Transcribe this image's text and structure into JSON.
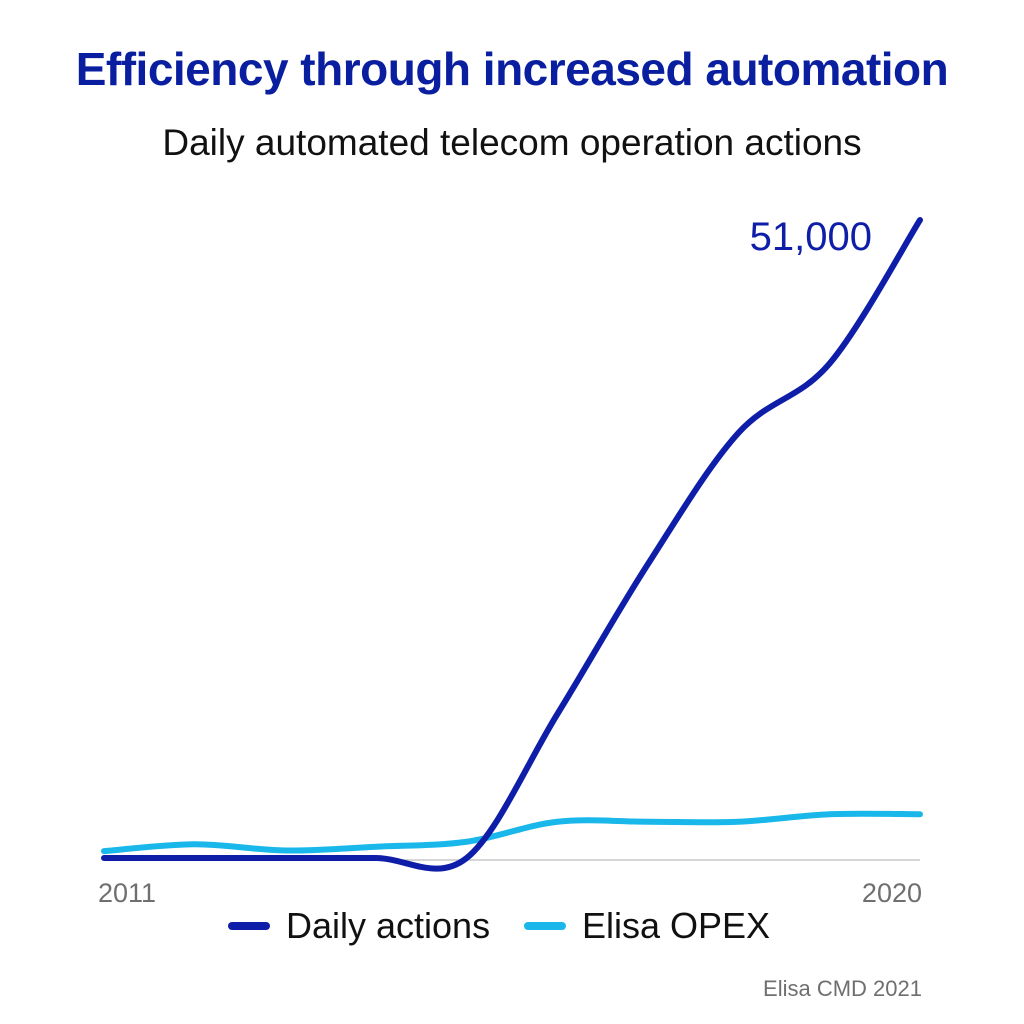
{
  "header": {
    "title": "Efficiency through increased automation",
    "subtitle": "Daily automated telecom operation actions"
  },
  "colors": {
    "title": "#0a1ea0",
    "daily_actions": "#0f1ea8",
    "elisa_opex": "#1ab8ea",
    "axis": "#c8c8c8",
    "tick_text": "#6f6f6f"
  },
  "chart_data": {
    "type": "line",
    "x": [
      2011,
      2012,
      2013,
      2014,
      2015,
      2016,
      2017,
      2018,
      2019,
      2020
    ],
    "x_tick_labels": [
      "2011",
      "2020"
    ],
    "xlim": [
      2011,
      2020
    ],
    "ylim": [
      0,
      51000
    ],
    "grid": false,
    "legend_position": "bottom",
    "series": [
      {
        "name": "Daily actions",
        "values": [
          0,
          0,
          0,
          0,
          0,
          11500,
          23500,
          34000,
          39500,
          51000
        ]
      },
      {
        "name": "Elisa OPEX",
        "values": [
          550,
          1100,
          600,
          900,
          1300,
          2900,
          2900,
          2900,
          3500,
          3500
        ]
      }
    ],
    "annotations": [
      {
        "text": "51,000",
        "x": 2020,
        "y": 51000
      }
    ]
  },
  "footer": {
    "source": "Elisa CMD 2021"
  }
}
